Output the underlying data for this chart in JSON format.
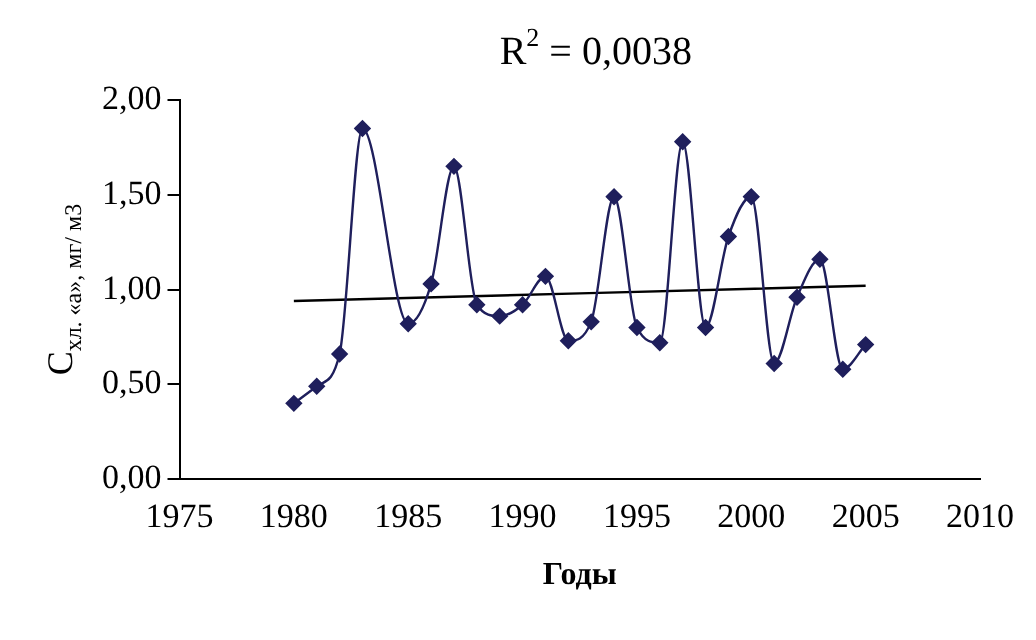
{
  "chart_data": {
    "type": "line",
    "xlabel": "Годы",
    "ylabel": "C$_{хл. «а», мг/ м3}$",
    "annotations": [
      "R$^{2}$ = 0,0038"
    ],
    "xlim": [
      1975,
      2010
    ],
    "xticks": [
      1975,
      1980,
      1985,
      1990,
      1995,
      2000,
      2005,
      2010
    ],
    "ylim": [
      0,
      2
    ],
    "yticks": [
      {
        "value": 0,
        "label": "0,00"
      },
      {
        "value": 0.5,
        "label": "0,50"
      },
      {
        "value": 1,
        "label": "1,00"
      },
      {
        "value": 1.5,
        "label": "1,50"
      },
      {
        "value": 2,
        "label": "2,00"
      }
    ],
    "grid": false,
    "legend": false,
    "series": [
      {
        "color": "#1f1f5c",
        "marker": "diamond",
        "x": [
          1980,
          1981,
          1982,
          1983,
          1985,
          1986,
          1987,
          1988,
          1989,
          1990,
          1991,
          1992,
          1993,
          1994,
          1995,
          1996,
          1997,
          1998,
          1999,
          2000,
          2001,
          2002,
          2003,
          2004,
          2005
        ],
        "values": [
          0.4,
          0.49,
          0.66,
          1.85,
          0.82,
          1.03,
          1.65,
          0.92,
          0.86,
          0.92,
          1.07,
          0.73,
          0.83,
          1.49,
          0.8,
          0.72,
          1.78,
          0.8,
          1.28,
          1.49,
          0.61,
          0.96,
          1.16,
          0.58,
          0.71
        ]
      },
      {
        "color": "#000000",
        "marker": "none",
        "x": [
          1980,
          2005
        ],
        "values": [
          0.94,
          1.02
        ]
      }
    ]
  }
}
